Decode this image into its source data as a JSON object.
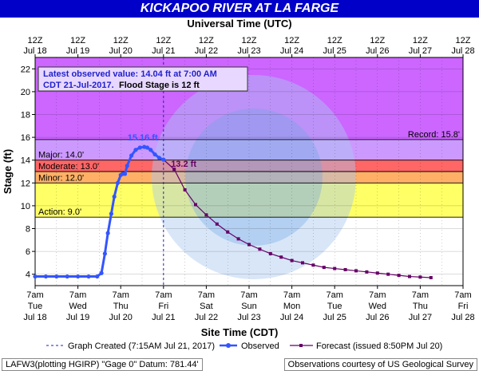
{
  "colors": {
    "title_bg": "#0000c8",
    "record": "#cc66ff",
    "major": "#cc99ff",
    "moderate": "#ff6666",
    "minor": "#ffb066",
    "action": "#ffff66",
    "normal": "#ffffff",
    "observed": "#3355ff",
    "forecast": "#660066"
  },
  "chart_data": {
    "type": "line",
    "title": "KICKAPOO RIVER AT LA FARGE",
    "top_axis_title": "Universal Time (UTC)",
    "xlabel": "Site Time (CDT)",
    "ylabel": "Stage (ft)",
    "ylim": [
      3,
      23
    ],
    "yticks": [
      4,
      6,
      8,
      10,
      12,
      14,
      16,
      18,
      20,
      22
    ],
    "y_tick_labels": [
      "4",
      "6",
      "8",
      "10",
      "12",
      "14",
      "16",
      "18",
      "20",
      "22"
    ],
    "xlim_days": [
      "Jul 18",
      "Jul 28"
    ],
    "top_ticks": [
      {
        "hour": "12Z",
        "date": "Jul 18"
      },
      {
        "hour": "12Z",
        "date": "Jul 19"
      },
      {
        "hour": "12Z",
        "date": "Jul 20"
      },
      {
        "hour": "12Z",
        "date": "Jul 21"
      },
      {
        "hour": "12Z",
        "date": "Jul 22"
      },
      {
        "hour": "12Z",
        "date": "Jul 23"
      },
      {
        "hour": "12Z",
        "date": "Jul 24"
      },
      {
        "hour": "12Z",
        "date": "Jul 25"
      },
      {
        "hour": "12Z",
        "date": "Jul 26"
      },
      {
        "hour": "12Z",
        "date": "Jul 27"
      },
      {
        "hour": "12Z",
        "date": "Jul 28"
      }
    ],
    "bottom_ticks": [
      {
        "time": "7am",
        "day": "Tue",
        "date": "Jul 18"
      },
      {
        "time": "7am",
        "day": "Wed",
        "date": "Jul 19"
      },
      {
        "time": "7am",
        "day": "Thu",
        "date": "Jul 20"
      },
      {
        "time": "7am",
        "day": "Fri",
        "date": "Jul 21"
      },
      {
        "time": "7am",
        "day": "Sat",
        "date": "Jul 22"
      },
      {
        "time": "7am",
        "day": "Sun",
        "date": "Jul 23"
      },
      {
        "time": "7am",
        "day": "Mon",
        "date": "Jul 24"
      },
      {
        "time": "7am",
        "day": "Tue",
        "date": "Jul 25"
      },
      {
        "time": "7am",
        "day": "Wed",
        "date": "Jul 26"
      },
      {
        "time": "7am",
        "day": "Thu",
        "date": "Jul 27"
      },
      {
        "time": "7am",
        "day": "Fri",
        "date": "Jul 28"
      }
    ],
    "flood_categories": [
      {
        "name": "record",
        "from": 15.8,
        "to": 23
      },
      {
        "name": "major",
        "from": 14.0,
        "to": 15.8
      },
      {
        "name": "moderate",
        "from": 13.0,
        "to": 14.0
      },
      {
        "name": "minor",
        "from": 12.0,
        "to": 13.0
      },
      {
        "name": "action",
        "from": 9.0,
        "to": 12.0
      },
      {
        "name": "normal",
        "from": 3,
        "to": 9.0
      }
    ],
    "threshold_labels": [
      {
        "label": "Record: 15.8'",
        "value": 15.8,
        "side": "right"
      },
      {
        "label": "Major: 14.0'",
        "value": 14.0,
        "side": "left"
      },
      {
        "label": "Moderate: 13.0'",
        "value": 13.0,
        "side": "left"
      },
      {
        "label": "Minor: 12.0'",
        "value": 12.0,
        "side": "left"
      },
      {
        "label": "Action: 9.0'",
        "value": 9.0,
        "side": "left"
      }
    ],
    "observed": {
      "x_days": [
        0.0,
        0.25,
        0.5,
        0.75,
        1.0,
        1.25,
        1.45,
        1.55,
        1.63,
        1.7,
        1.78,
        1.85,
        1.93,
        2.0,
        2.05,
        2.1,
        2.15,
        2.25,
        2.35,
        2.45,
        2.55,
        2.62,
        2.7,
        2.8,
        2.9,
        3.0
      ],
      "values": [
        3.8,
        3.8,
        3.8,
        3.8,
        3.8,
        3.8,
        3.8,
        4.1,
        5.8,
        7.6,
        9.3,
        10.8,
        12.0,
        12.7,
        12.8,
        12.8,
        13.5,
        14.4,
        14.9,
        15.1,
        15.16,
        15.1,
        14.9,
        14.5,
        14.2,
        14.04
      ]
    },
    "forecast": {
      "x_days": [
        3.0,
        3.25,
        3.5,
        3.75,
        4.0,
        4.25,
        4.5,
        4.75,
        5.0,
        5.25,
        5.5,
        5.75,
        6.0,
        6.25,
        6.5,
        6.75,
        7.0,
        7.25,
        7.5,
        7.75,
        8.0,
        8.25,
        8.5,
        8.75,
        9.0,
        9.25
      ],
      "values": [
        14.04,
        13.2,
        11.4,
        10.1,
        9.2,
        8.4,
        7.7,
        7.1,
        6.6,
        6.2,
        5.8,
        5.5,
        5.2,
        5.0,
        4.8,
        4.6,
        4.5,
        4.4,
        4.3,
        4.2,
        4.1,
        4.0,
        3.9,
        3.8,
        3.75,
        3.7
      ]
    },
    "peak_label": "15.16 ft",
    "forecast_start_label": "13.2 ft",
    "info_box": {
      "line1": "Latest observed value: 14.04 ft at 7:00 AM",
      "line2a": "CDT 21-Jul-2017.",
      "line2b": " Flood Stage is 12 ft"
    },
    "legend": {
      "created": "Graph Created (7:15AM Jul 21, 2017)",
      "observed": "Observed",
      "forecast": "Forecast (issued 8:50PM Jul 20)"
    }
  },
  "footer": {
    "left": "LAFW3(plotting HGIRP) \"Gage 0\" Datum: 781.44'",
    "right": "Observations courtesy of US Geological Survey"
  }
}
